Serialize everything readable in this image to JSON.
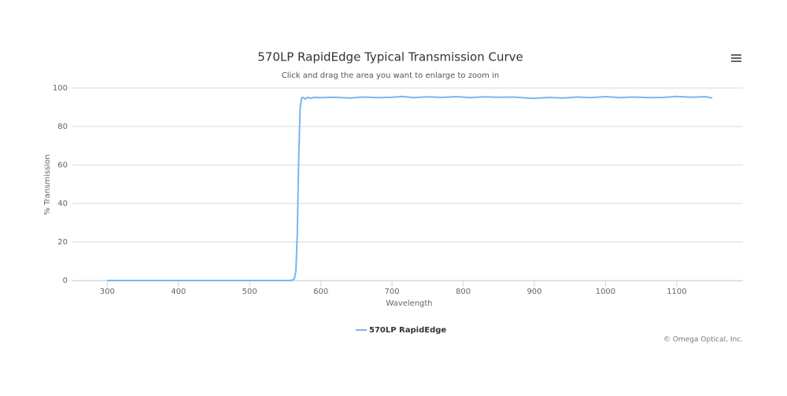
{
  "chart_data": {
    "type": "line",
    "title": "570LP RapidEdge Typical Transmission Curve",
    "subtitle": "Click and drag the area you want to enlarge to zoom in",
    "x_label": "Wavelength",
    "y_label": "% Transmission",
    "credits": "© Omega Optical, Inc.",
    "x": [
      300,
      350,
      400,
      450,
      500,
      540,
      555,
      560,
      563,
      565,
      567,
      569,
      571,
      573,
      575,
      578,
      582,
      586,
      590,
      600,
      620,
      640,
      660,
      680,
      700,
      715,
      730,
      750,
      770,
      790,
      810,
      830,
      850,
      870,
      890,
      900,
      920,
      940,
      960,
      980,
      1000,
      1020,
      1040,
      1060,
      1080,
      1100,
      1120,
      1140,
      1150
    ],
    "series": [
      {
        "name": "570LP RapidEdge",
        "color": "#7cb5ec",
        "values": [
          0,
          0,
          0,
          0,
          0,
          0,
          0,
          0.2,
          1,
          5,
          25,
          65,
          90,
          94.8,
          95.2,
          94.3,
          95.2,
          94.6,
          95.1,
          95,
          95.2,
          94.8,
          95.3,
          95,
          95.2,
          95.6,
          95,
          95.4,
          95.1,
          95.5,
          95,
          95.4,
          95.2,
          95.3,
          94.8,
          94.6,
          95.1,
          94.8,
          95.3,
          95,
          95.5,
          95,
          95.3,
          95,
          95.1,
          95.6,
          95.2,
          95.5,
          94.8
        ]
      }
    ],
    "xlim": [
      251,
      1193
    ],
    "xticks": [
      300,
      400,
      500,
      600,
      700,
      800,
      900,
      1000,
      1100
    ],
    "ylim": [
      0,
      100
    ],
    "yticks": [
      0,
      20,
      40,
      60,
      80,
      100
    ],
    "grid": true,
    "legend": "bottom"
  }
}
